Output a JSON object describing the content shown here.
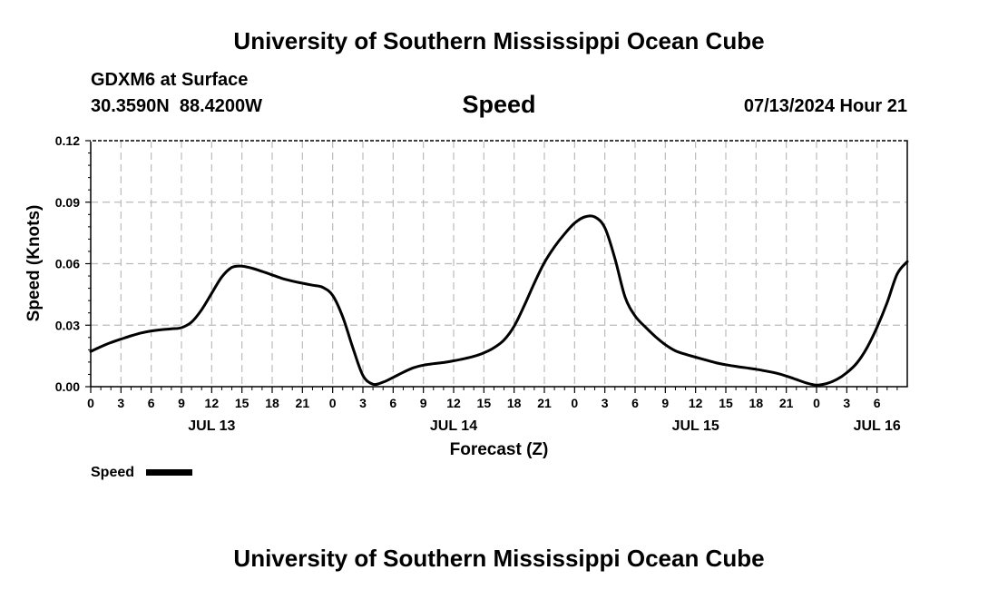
{
  "header": {
    "title": "University of Southern Mississippi Ocean Cube",
    "station": "GDXM6 at Surface",
    "coords": "30.3590N  88.4200W",
    "chart_title": "Speed",
    "datetime": "07/13/2024 Hour 21"
  },
  "footer": {
    "title": "University of Southern Mississippi Ocean Cube"
  },
  "chart_data": {
    "type": "line",
    "title": "Speed",
    "xlabel": "Forecast (Z)",
    "ylabel": "Speed (Knots)",
    "xlim": [
      0,
      81
    ],
    "ylim": [
      0,
      0.12
    ],
    "grid": true,
    "y_ticks": [
      "0.00",
      "0.03",
      "0.06",
      "0.09",
      "0.12"
    ],
    "x_ticks": [
      "0",
      "3",
      "6",
      "9",
      "12",
      "15",
      "18",
      "21",
      "0",
      "3",
      "6",
      "9",
      "12",
      "15",
      "18",
      "21",
      "0",
      "3",
      "6",
      "9",
      "12",
      "15",
      "18",
      "21",
      "0",
      "3",
      "6"
    ],
    "date_labels": [
      {
        "label": "JUL 13",
        "hour": 12
      },
      {
        "label": "JUL 14",
        "hour": 36
      },
      {
        "label": "JUL 15",
        "hour": 60
      },
      {
        "label": "JUL 16",
        "hour": 78
      }
    ],
    "legend": {
      "label": "Speed",
      "position": "bottom-left"
    },
    "series": [
      {
        "name": "Speed",
        "x": [
          0,
          1,
          2,
          3,
          4,
          5,
          6,
          7,
          8,
          9,
          10,
          11,
          12,
          13,
          14,
          15,
          16,
          17,
          18,
          19,
          20,
          21,
          22,
          23,
          24,
          25,
          26,
          27,
          28,
          29,
          30,
          31,
          32,
          33,
          34,
          35,
          36,
          37,
          38,
          39,
          40,
          41,
          42,
          43,
          44,
          45,
          46,
          47,
          48,
          49,
          50,
          51,
          52,
          53,
          54,
          55,
          56,
          57,
          58,
          59,
          60,
          61,
          62,
          63,
          64,
          65,
          66,
          67,
          68,
          69,
          70,
          71,
          72,
          73,
          74,
          75,
          76,
          77,
          78,
          79,
          80,
          81
        ],
        "values": [
          0.0172,
          0.0195,
          0.0215,
          0.0232,
          0.0248,
          0.0262,
          0.0272,
          0.0278,
          0.0282,
          0.0288,
          0.0315,
          0.0375,
          0.0455,
          0.0535,
          0.0582,
          0.0588,
          0.0578,
          0.0562,
          0.0545,
          0.0528,
          0.0515,
          0.0505,
          0.0495,
          0.0485,
          0.0445,
          0.034,
          0.019,
          0.0055,
          0.0012,
          0.0022,
          0.0045,
          0.007,
          0.0092,
          0.0105,
          0.0112,
          0.0118,
          0.0126,
          0.0136,
          0.0148,
          0.0165,
          0.019,
          0.0228,
          0.0295,
          0.0395,
          0.0505,
          0.0605,
          0.0682,
          0.0745,
          0.0798,
          0.0828,
          0.0828,
          0.0775,
          0.0625,
          0.0438,
          0.0345,
          0.0292,
          0.0245,
          0.0205,
          0.0175,
          0.0158,
          0.0144,
          0.013,
          0.0117,
          0.0107,
          0.0099,
          0.0092,
          0.0085,
          0.0076,
          0.0066,
          0.0052,
          0.0035,
          0.0018,
          0.0008,
          0.0015,
          0.0035,
          0.0068,
          0.0115,
          0.019,
          0.029,
          0.041,
          0.055,
          0.061
        ]
      }
    ]
  }
}
